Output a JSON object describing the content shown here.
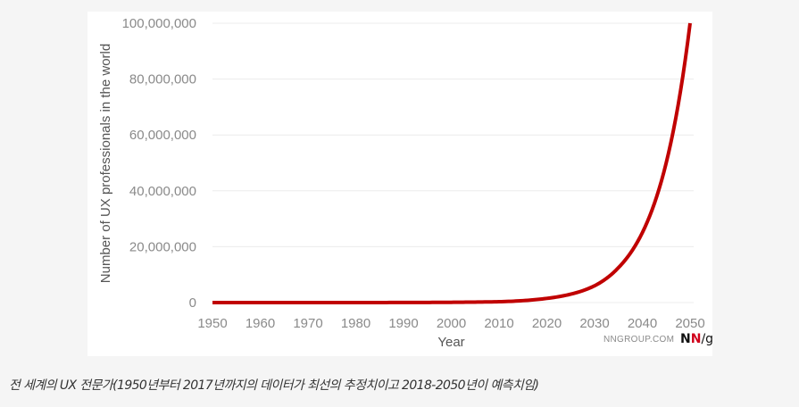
{
  "chart_data": {
    "type": "line",
    "title": "",
    "xlabel": "Year",
    "ylabel": "Number of UX professionals in the world",
    "xlim": [
      1950,
      2050
    ],
    "ylim": [
      0,
      100000000
    ],
    "x_ticks": [
      "1950",
      "1960",
      "1970",
      "1980",
      "1990",
      "2000",
      "2010",
      "2020",
      "2030",
      "2040",
      "2050"
    ],
    "y_ticks": [
      "0",
      "20,000,000",
      "40,000,000",
      "60,000,000",
      "80,000,000",
      "100,000,000"
    ],
    "grid": "horizontal",
    "legend": null,
    "series": [
      {
        "name": "UX professionals",
        "color": "#c00000",
        "x": [
          1950,
          1960,
          1970,
          1980,
          1990,
          2000,
          2005,
          2010,
          2015,
          2020,
          2025,
          2030,
          2035,
          2040,
          2045,
          2050
        ],
        "values": [
          1000,
          2000,
          5000,
          10000,
          30000,
          100000,
          180000,
          300000,
          700000,
          1500000,
          3000000,
          6000000,
          12500000,
          25000000,
          50000000,
          100000000
        ]
      }
    ]
  },
  "brand": {
    "site": "NNGROUP.COM",
    "logo_n1": "N",
    "logo_n2": "N",
    "logo_g": "/g"
  },
  "caption": "전 세계의 UX 전문가(1950년부터 2017년까지의 데이터가 최선의 추정치이고 2018-2050년이 예측치임)"
}
